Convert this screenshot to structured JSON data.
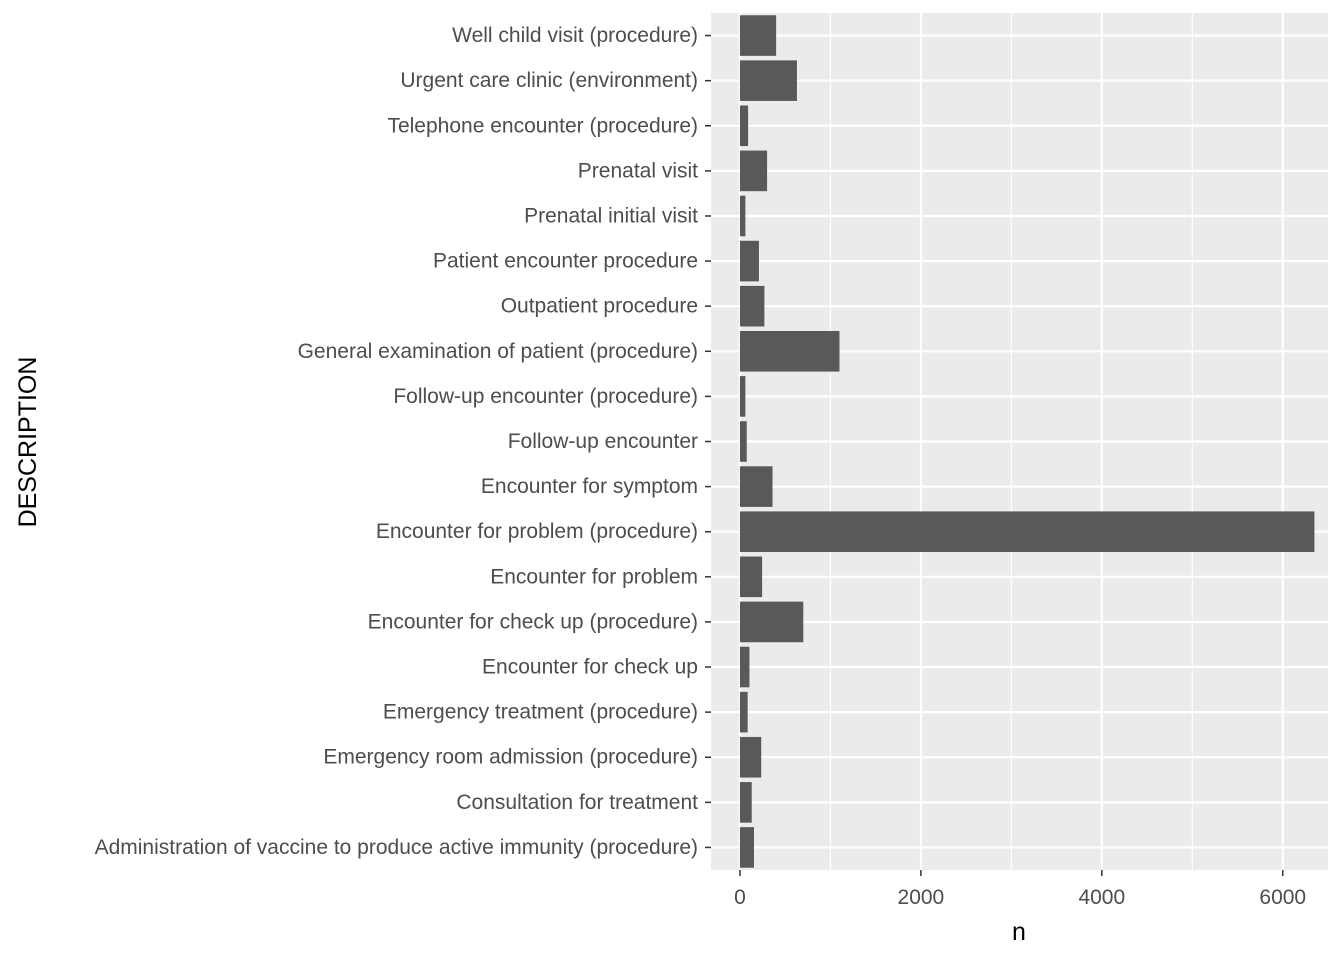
{
  "chart_data": {
    "type": "bar",
    "orientation": "horizontal",
    "title": "",
    "xlabel": "n",
    "ylabel": "DESCRIPTION",
    "xlim": [
      -320,
      6500
    ],
    "xticks": [
      0,
      2000,
      4000,
      6000
    ],
    "grid": true,
    "legend": "none",
    "colors": {
      "panel": "#ebebeb",
      "grid": "#ffffff",
      "bar": "#595959",
      "tick_text": "#4d4d4d",
      "tick_mark": "#333333"
    },
    "categories": [
      "Well child visit (procedure)",
      "Urgent care clinic (environment)",
      "Telephone encounter (procedure)",
      "Prenatal visit",
      "Prenatal initial visit",
      "Patient encounter procedure",
      "Outpatient procedure",
      "General examination of patient (procedure)",
      "Follow-up encounter (procedure)",
      "Follow-up encounter",
      "Encounter for symptom",
      "Encounter for problem (procedure)",
      "Encounter for problem",
      "Encounter for check up (procedure)",
      "Encounter for check up",
      "Emergency treatment (procedure)",
      "Emergency room admission (procedure)",
      "Consultation for treatment",
      "Administration of vaccine to produce active immunity (procedure)"
    ],
    "values": [
      400,
      630,
      90,
      300,
      60,
      210,
      270,
      1100,
      60,
      75,
      360,
      6350,
      245,
      700,
      105,
      85,
      235,
      130,
      155
    ]
  }
}
